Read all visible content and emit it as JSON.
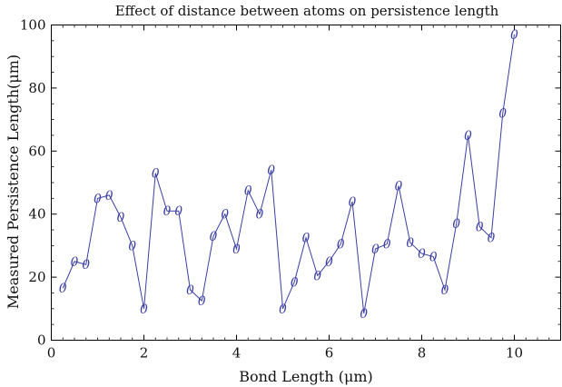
{
  "chart_data": {
    "type": "line",
    "title": "Effect of distance between atoms on persistence length",
    "xlabel": "Bond Length (μm)",
    "ylabel": "Measured Persistence Length(μm)",
    "xlim": [
      0,
      11
    ],
    "ylim": [
      0,
      100
    ],
    "x_ticks": [
      0,
      2,
      4,
      6,
      8,
      10
    ],
    "y_ticks": [
      0,
      20,
      40,
      60,
      80,
      100
    ],
    "x_tick_labels": [
      "0",
      "2",
      "4",
      "6",
      "8",
      "10"
    ],
    "y_tick_labels": [
      "0",
      "20",
      "40",
      "60",
      "80",
      "100"
    ],
    "grid": false,
    "legend": "none",
    "marker_symbol": "0",
    "colors": {
      "series": "#3a3fa3",
      "axes": "#000000",
      "text": "#111111",
      "background": "#ffffff"
    },
    "series": [
      {
        "x": [
          0.25,
          0.5,
          0.75,
          1.0,
          1.25,
          1.5,
          1.75,
          2.0,
          2.25,
          2.5,
          2.75,
          3.0,
          3.25,
          3.5,
          3.75,
          4.0,
          4.25,
          4.5,
          4.75,
          5.0,
          5.25,
          5.5,
          5.75,
          6.0,
          6.25,
          6.5,
          6.75,
          7.0,
          7.25,
          7.5,
          7.75,
          8.0,
          8.25,
          8.5,
          8.75,
          9.0,
          9.25,
          9.5,
          9.75,
          10.0
        ],
        "y": [
          16.5,
          25,
          24,
          45,
          46,
          39,
          30,
          10,
          53,
          41,
          41,
          16,
          12.5,
          33,
          40,
          29,
          47.5,
          40,
          54,
          10,
          18.5,
          32.5,
          20.5,
          25,
          30.5,
          44,
          8.5,
          29,
          30.5,
          49,
          31,
          27.5,
          26.5,
          16,
          37,
          65,
          36,
          32.5,
          72,
          97
        ]
      }
    ]
  }
}
